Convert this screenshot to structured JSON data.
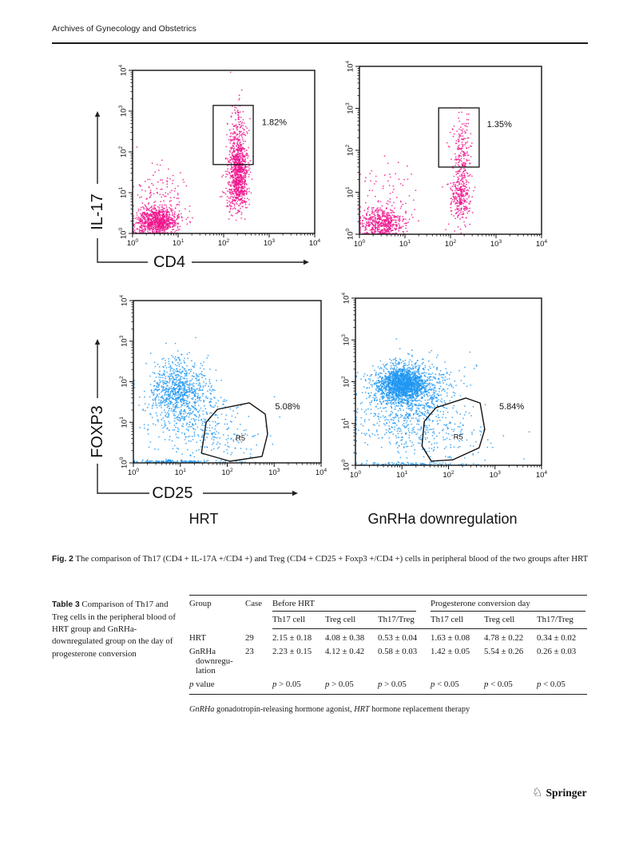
{
  "page": {
    "journal": "Archives of Gynecology and Obstetrics",
    "publisher": "Springer"
  },
  "icons": {
    "springer_knight": "♘"
  },
  "figure": {
    "caption_label": "Fig. 2",
    "caption_text": "The comparison of Th17 (CD4 + IL-17A +/CD4 +) and Treg (CD4 + CD25 + Foxp3 +/CD4 +) cells in peripheral blood of the two groups after HRT",
    "panels": {
      "left": "HRT",
      "right": "GnRHa downregulation"
    }
  },
  "chart_data": [
    {
      "type": "scatter",
      "name": "th17-hrt",
      "panel": "HRT",
      "x_label": "CD4",
      "y_label": "IL-17",
      "show_axis_names": true,
      "scale": "log",
      "x_range": [
        1,
        10000
      ],
      "y_range": [
        1,
        10000
      ],
      "tick_exponents": [
        0,
        1,
        2,
        3,
        4
      ],
      "dot_color": "#f0138c",
      "gate": {
        "shape": "rect",
        "x": [
          1.77,
          2.65
        ],
        "y": [
          1.69,
          3.14
        ],
        "label": "1.82%",
        "label_log_pos": [
          2.84,
          2.66
        ]
      },
      "clusters": [
        {
          "n": 850,
          "cx": 0.55,
          "cy": 0.3,
          "sx": 0.22,
          "sy": 0.17
        },
        {
          "n": 140,
          "cx": 0.62,
          "cy": 0.85,
          "sx": 0.3,
          "sy": 0.45
        },
        {
          "n": 600,
          "cx": 2.32,
          "cy": 1.55,
          "sx": 0.1,
          "sy": 0.38
        },
        {
          "n": 250,
          "cx": 2.3,
          "cy": 1.0,
          "sx": 0.13,
          "sy": 0.25
        },
        {
          "n": 170,
          "cx": 2.33,
          "cy": 2.45,
          "sx": 0.1,
          "sy": 0.42
        }
      ]
    },
    {
      "type": "scatter",
      "name": "th17-gnrha",
      "panel": "GnRHa downregulation",
      "x_label": "",
      "y_label": "",
      "show_axis_names": false,
      "scale": "log",
      "x_range": [
        1,
        10000
      ],
      "y_range": [
        1,
        10000
      ],
      "tick_exponents": [
        0,
        1,
        2,
        3,
        4
      ],
      "dot_color": "#f0138c",
      "gate": {
        "shape": "rect",
        "x": [
          1.74,
          2.63
        ],
        "y": [
          1.6,
          3.01
        ],
        "label": "1.35%",
        "label_log_pos": [
          2.8,
          2.55
        ]
      },
      "clusters": [
        {
          "n": 520,
          "cx": 0.5,
          "cy": 0.27,
          "sx": 0.24,
          "sy": 0.17
        },
        {
          "n": 70,
          "cx": 0.55,
          "cy": 1.0,
          "sx": 0.3,
          "sy": 0.42
        },
        {
          "n": 260,
          "cx": 2.22,
          "cy": 0.85,
          "sx": 0.11,
          "sy": 0.28
        },
        {
          "n": 120,
          "cx": 2.25,
          "cy": 1.55,
          "sx": 0.11,
          "sy": 0.35
        },
        {
          "n": 90,
          "cx": 2.22,
          "cy": 2.3,
          "sx": 0.12,
          "sy": 0.45
        }
      ]
    },
    {
      "type": "scatter",
      "name": "treg-hrt",
      "panel": "HRT",
      "x_label": "CD25",
      "y_label": "FOXP3",
      "show_axis_names": true,
      "scale": "log",
      "x_range": [
        1,
        10000
      ],
      "y_range": [
        1,
        10000
      ],
      "tick_exponents": [
        0,
        1,
        2,
        3,
        4
      ],
      "dot_color": "#2097f3",
      "gate": {
        "shape": "polygon",
        "points": [
          [
            1.55,
            1.0
          ],
          [
            1.79,
            1.32
          ],
          [
            2.47,
            1.48
          ],
          [
            2.81,
            1.2
          ],
          [
            2.86,
            0.71
          ],
          [
            2.74,
            0.16
          ],
          [
            2.06,
            0.04
          ],
          [
            1.45,
            0.24
          ]
        ],
        "label": "5.08%",
        "label_log_pos": [
          3.02,
          1.32
        ],
        "region_label": "R5",
        "region_log_pos": [
          2.28,
          0.55
        ]
      },
      "clusters": [
        {
          "n": 780,
          "cx": 0.95,
          "cy": 1.8,
          "sx": 0.3,
          "sy": 0.38
        },
        {
          "n": 260,
          "cx": 1.25,
          "cy": 1.05,
          "sx": 0.5,
          "sy": 0.45
        },
        {
          "n": 130,
          "cx": 1.9,
          "cy": 0.6,
          "sx": 0.5,
          "sy": 0.38
        },
        {
          "n": 140,
          "cx": 0.85,
          "cy": 0.03,
          "sx": 0.45,
          "sy": 0.02
        }
      ]
    },
    {
      "type": "scatter",
      "name": "treg-gnrha",
      "panel": "GnRHa downregulation",
      "x_label": "",
      "y_label": "",
      "show_axis_names": false,
      "scale": "log",
      "x_range": [
        1,
        10000
      ],
      "y_range": [
        1,
        10000
      ],
      "tick_exponents": [
        0,
        1,
        2,
        3,
        4
      ],
      "dot_color": "#2097f3",
      "gate": {
        "shape": "polygon",
        "points": [
          [
            1.48,
            1.05
          ],
          [
            1.73,
            1.38
          ],
          [
            2.37,
            1.61
          ],
          [
            2.68,
            1.49
          ],
          [
            2.78,
            0.86
          ],
          [
            2.66,
            0.42
          ],
          [
            2.09,
            0.13
          ],
          [
            1.63,
            0.1
          ],
          [
            1.43,
            0.46
          ]
        ],
        "label": "5.84%",
        "label_log_pos": [
          3.09,
          1.34
        ],
        "region_label": "R5",
        "region_log_pos": [
          2.21,
          0.62
        ]
      },
      "clusters": [
        {
          "n": 1400,
          "cx": 1.0,
          "cy": 1.95,
          "sx": 0.25,
          "sy": 0.2
        },
        {
          "n": 800,
          "cx": 1.2,
          "cy": 1.85,
          "sx": 0.48,
          "sy": 0.32
        },
        {
          "n": 380,
          "cx": 1.1,
          "cy": 1.1,
          "sx": 0.52,
          "sy": 0.4
        },
        {
          "n": 130,
          "cx": 1.95,
          "cy": 0.6,
          "sx": 0.55,
          "sy": 0.4
        },
        {
          "n": 90,
          "cx": 1.05,
          "cy": 0.03,
          "sx": 0.55,
          "sy": 0.02
        }
      ]
    }
  ],
  "table": {
    "caption_label": "Table 3",
    "caption_text": "Comparison of Th17 and Treg cells in the peripheral blood of HRT group and GnRHa-downregulated group on the day of progesterone conversion",
    "headers": {
      "group": "Group",
      "case": "Case",
      "before": "Before HRT",
      "conversion": "Progesterone conversion day"
    },
    "subheaders": [
      "Th17 cell",
      "Treg cell",
      "Th17/Treg",
      "Th17 cell",
      "Treg cell",
      "Th17/Treg"
    ],
    "rows": [
      [
        "HRT",
        "29",
        "2.15 ± 0.18",
        "4.08 ± 0.38",
        "0.53 ± 0.04",
        "1.63 ± 0.08",
        "4.78 ± 0.22",
        "0.34 ± 0.02"
      ],
      [
        "GnRHa downregu-lation",
        "23",
        "2.23 ± 0.15",
        "4.12 ± 0.42",
        "0.58 ± 0.03",
        "1.42 ± 0.05",
        "5.54 ± 0.26",
        "0.26 ± 0.03"
      ],
      [
        "p value",
        "",
        "p > 0.05",
        "p > 0.05",
        "p > 0.05",
        "p < 0.05",
        "p < 0.05",
        "p < 0.05"
      ]
    ],
    "footnote_parts": [
      {
        "text": "GnRHa",
        "italic": true
      },
      {
        "text": " gonadotropin-releasing hormone agonist, ",
        "italic": false
      },
      {
        "text": "HRT",
        "italic": true
      },
      {
        "text": " hormone replacement therapy",
        "italic": false
      }
    ]
  }
}
